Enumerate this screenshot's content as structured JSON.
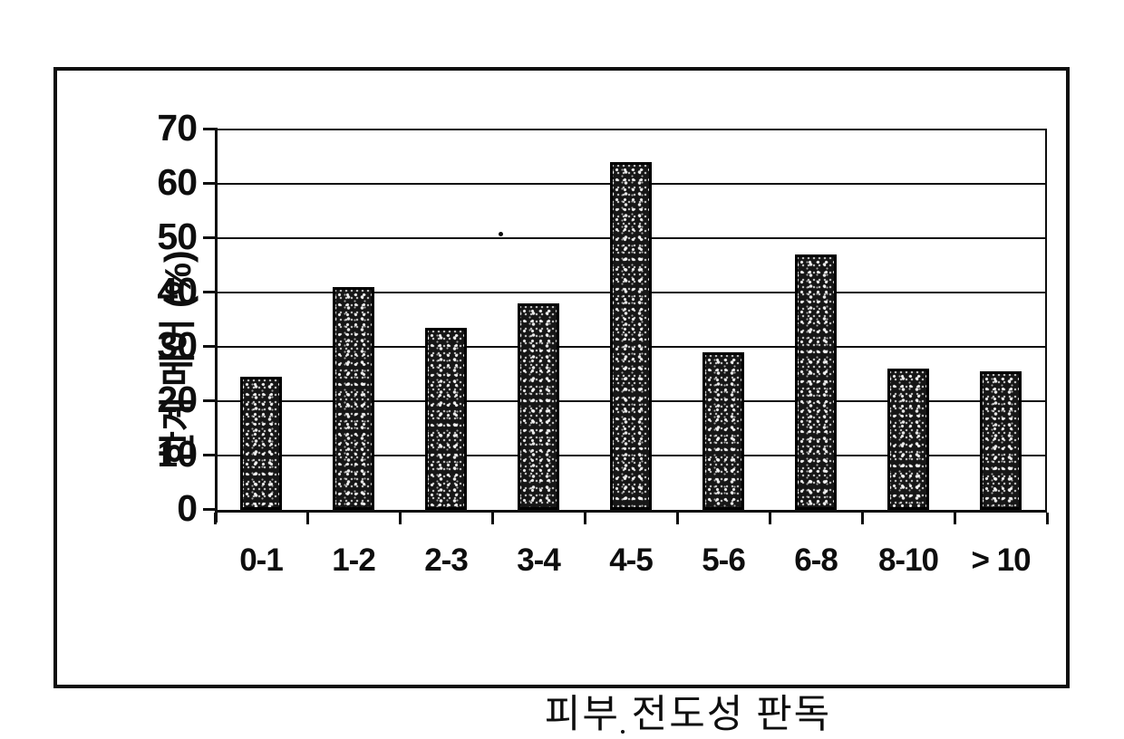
{
  "figure": {
    "background": "#ffffff",
    "ink_color": "#0e0e0e",
    "bar_fill": "#161616"
  },
  "chart_data": {
    "type": "bar",
    "title": "",
    "xlabel": "피부 전도성 판독",
    "ylabel": "한계 메어 (%)",
    "categories": [
      "0-1",
      "1-2",
      "2-3",
      "3-4",
      "4-5",
      "5-6",
      "6-8",
      "8-10",
      "> 10"
    ],
    "values": [
      24.5,
      41,
      33.5,
      38,
      64,
      29,
      47,
      26,
      25.5
    ],
    "ylim": [
      0,
      70
    ],
    "yticks": [
      0,
      10,
      20,
      30,
      40,
      50,
      60,
      70
    ],
    "grid": true,
    "legend": "none",
    "bar_style": "speckled-black"
  }
}
